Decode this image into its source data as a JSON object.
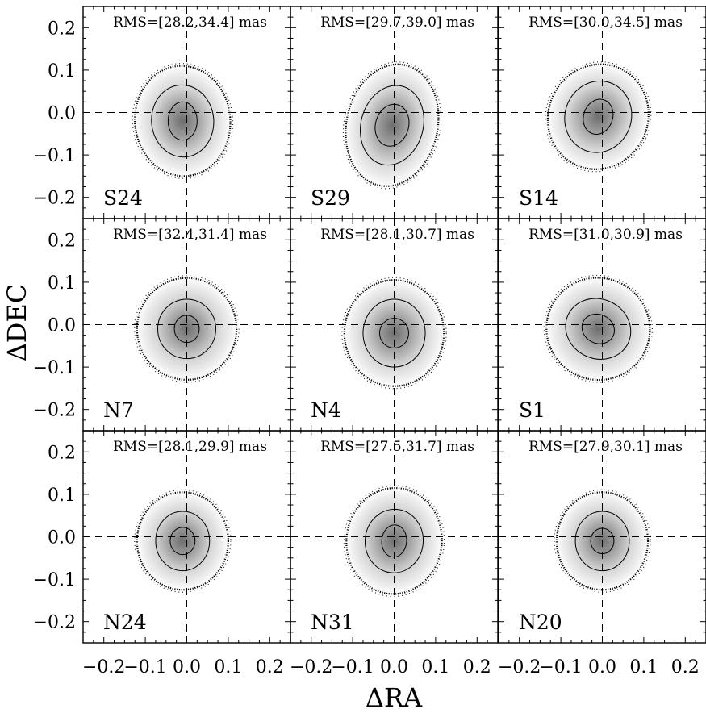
{
  "chart_data": {
    "type": "heatmap",
    "xlabel": "ΔRA",
    "ylabel": "ΔDEC",
    "xlim": [
      -0.25,
      0.25
    ],
    "ylim": [
      -0.25,
      0.25
    ],
    "x_ticks": [
      "−0.2",
      "−0.1",
      "0.0",
      "0.1",
      "0.2"
    ],
    "y_ticks": [
      "0.2",
      "0.1",
      "0.0",
      "−0.1",
      "−0.2"
    ],
    "x_tick_values": [
      -0.2,
      -0.1,
      0.0,
      0.1,
      0.2
    ],
    "y_tick_values": [
      0.2,
      0.1,
      0.0,
      -0.1,
      -0.2
    ],
    "reference_lines": {
      "x": 0.0,
      "y": 0.0,
      "style": "dashed"
    },
    "colormap": "grayscale",
    "panels": [
      {
        "field": "S24",
        "rms_label": "RMS=[28.2,34.4] mas",
        "rms": [
          28.2,
          34.4
        ],
        "center": [
          -0.01,
          -0.02
        ],
        "inner": [
          0.035,
          0.045,
          0
        ],
        "middle": [
          0.075,
          0.085,
          -5
        ],
        "outer": [
          0.115,
          0.13,
          -5
        ]
      },
      {
        "field": "S29",
        "rms_label": "RMS=[29.7,39.0] mas",
        "rms": [
          29.7,
          39.0
        ],
        "center": [
          -0.005,
          -0.03
        ],
        "inner": [
          0.04,
          0.05,
          15
        ],
        "middle": [
          0.075,
          0.095,
          15
        ],
        "outer": [
          0.11,
          0.145,
          12
        ]
      },
      {
        "field": "S14",
        "rms_label": "RMS=[30.0,34.5] mas",
        "rms": [
          30.0,
          34.5
        ],
        "center": [
          -0.01,
          -0.01
        ],
        "inner": [
          0.035,
          0.042,
          20
        ],
        "middle": [
          0.08,
          0.085,
          20
        ],
        "outer": [
          0.12,
          0.125,
          25
        ]
      },
      {
        "field": "N7",
        "rms_label": "RMS=[32.4,31.4] mas",
        "rms": [
          32.4,
          31.4
        ],
        "center": [
          0.0,
          -0.01
        ],
        "inner": [
          0.03,
          0.032,
          0
        ],
        "middle": [
          0.07,
          0.07,
          0
        ],
        "outer": [
          0.12,
          0.12,
          0
        ]
      },
      {
        "field": "N4",
        "rms_label": "RMS=[28.1,30.7] mas",
        "rms": [
          28.1,
          30.7
        ],
        "center": [
          0.0,
          -0.02
        ],
        "inner": [
          0.035,
          0.035,
          0
        ],
        "middle": [
          0.075,
          0.08,
          0
        ],
        "outer": [
          0.12,
          0.125,
          0
        ]
      },
      {
        "field": "S1",
        "rms_label": "RMS=[31.0,30.9] mas",
        "rms": [
          31.0,
          30.9
        ],
        "center": [
          -0.01,
          -0.01
        ],
        "inner": [
          0.04,
          0.034,
          25
        ],
        "middle": [
          0.08,
          0.07,
          25
        ],
        "outer": [
          0.125,
          0.12,
          25
        ]
      },
      {
        "field": "N24",
        "rms_label": "RMS=[28.1,29.9] mas",
        "rms": [
          28.1,
          29.9
        ],
        "center": [
          -0.01,
          -0.01
        ],
        "inner": [
          0.03,
          0.032,
          0
        ],
        "middle": [
          0.065,
          0.07,
          0
        ],
        "outer": [
          0.11,
          0.115,
          0
        ]
      },
      {
        "field": "N31",
        "rms_label": "RMS=[27.5,31.7] mas",
        "rms": [
          27.5,
          31.7
        ],
        "center": [
          0.0,
          -0.01
        ],
        "inner": [
          0.03,
          0.038,
          5
        ],
        "middle": [
          0.07,
          0.075,
          5
        ],
        "outer": [
          0.115,
          0.125,
          5
        ]
      },
      {
        "field": "N20",
        "rms_label": "RMS=[27.9,30.1] mas",
        "rms": [
          27.9,
          30.1
        ],
        "center": [
          0.0,
          -0.01
        ],
        "inner": [
          0.028,
          0.03,
          0
        ],
        "middle": [
          0.065,
          0.07,
          0
        ],
        "outer": [
          0.11,
          0.115,
          0
        ]
      }
    ]
  }
}
